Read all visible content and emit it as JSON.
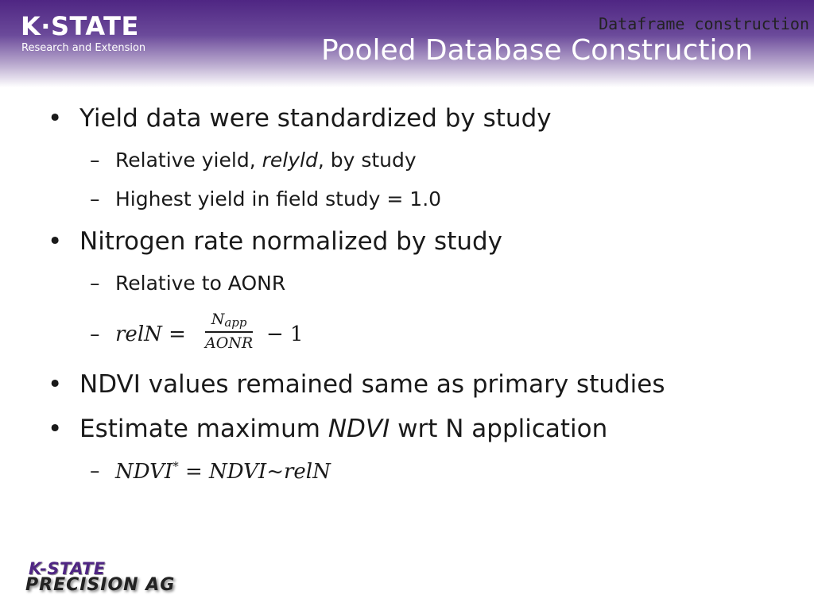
{
  "header": {
    "logo_main": "K·STATE",
    "logo_sub": "Research and Extension",
    "section_label": "Dataframe construction",
    "title": "Pooled Database Construction"
  },
  "bullets": {
    "b1": "Yield data were standardized by study",
    "b1_sub1_pre": "Relative yield, ",
    "b1_sub1_italic": "relyld",
    "b1_sub1_post": ", by study",
    "b1_sub2": "Highest yield in field study = 1.0",
    "b2": "Nitrogen rate normalized by study",
    "b2_sub1": "Relative to AONR",
    "b2_eq_lhs": "relN =",
    "b2_eq_num_base": "N",
    "b2_eq_num_sub": "app",
    "b2_eq_den": "AONR",
    "b2_eq_rhs": "− 1",
    "b3": "NDVI values remained same as primary studies",
    "b4_pre": "Estimate maximum ",
    "b4_italic": "NDVI",
    "b4_post": " wrt N application",
    "b4_eq_base": "NDVI",
    "b4_eq_sup": "*",
    "b4_eq_rest": " = NDVI~relN"
  },
  "footer": {
    "logo_top": "K-STATE",
    "logo_bottom": "PRECISION AG"
  }
}
